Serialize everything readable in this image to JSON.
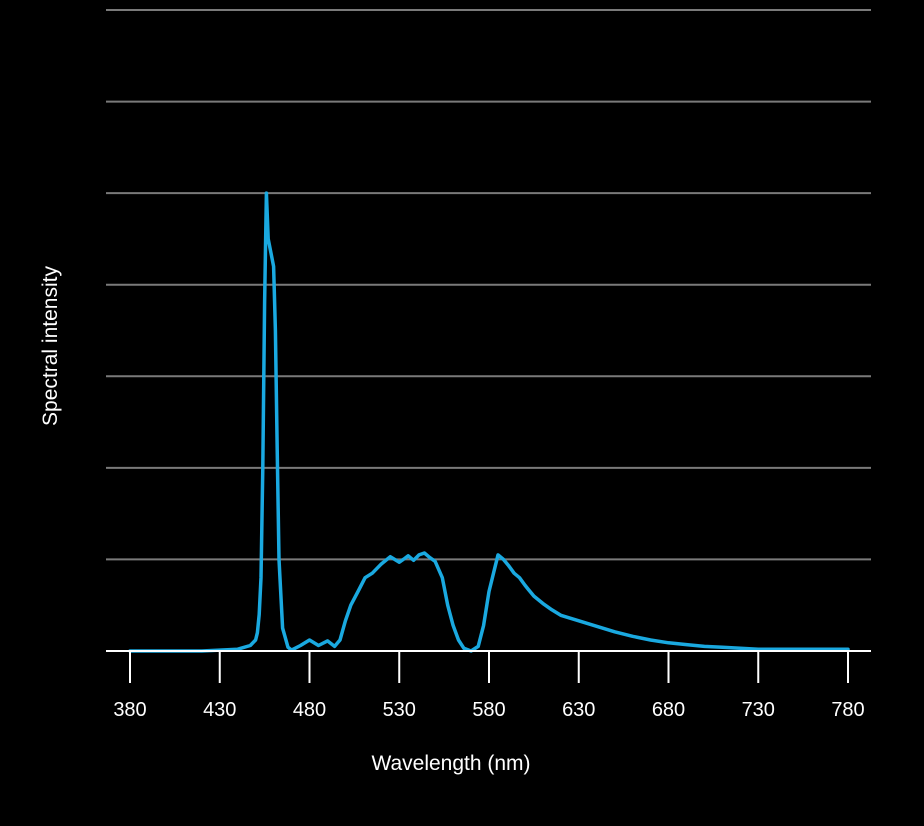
{
  "chart_data": {
    "type": "line",
    "title": "",
    "xlabel": "Wavelength (nm)",
    "ylabel": "Spectral intensity",
    "xlim": [
      380,
      780
    ],
    "ylim": [
      0,
      7
    ],
    "x_ticks": [
      380,
      430,
      480,
      530,
      580,
      630,
      680,
      730,
      780
    ],
    "x_tick_labels": [
      "380",
      "430",
      "480",
      "530",
      "580",
      "630",
      "680",
      "730",
      "780"
    ],
    "y_gridlines": [
      1,
      2,
      3,
      4,
      5,
      6,
      7
    ],
    "grid": "horizontal",
    "y_tick_labels_shown": false,
    "series": [
      {
        "color": "#1aa9e0",
        "x": [
          380,
          400,
          420,
          440,
          447,
          450,
          451,
          452,
          453,
          454,
          455,
          456,
          457,
          458,
          459,
          460,
          461,
          462,
          463,
          465,
          468,
          470,
          475,
          480,
          485,
          490,
          494,
          497,
          500,
          503,
          507,
          511,
          515,
          520,
          525,
          530,
          533,
          535,
          538,
          541,
          544,
          547,
          550,
          554,
          557,
          560,
          563,
          566,
          570,
          574,
          577,
          580,
          585,
          588,
          591,
          594,
          597,
          600,
          602,
          605,
          610,
          615,
          620,
          630,
          640,
          650,
          660,
          670,
          680,
          690,
          700,
          710,
          720,
          730,
          740,
          750,
          760,
          770,
          780
        ],
        "y": [
          0.0,
          0.0,
          0.0,
          0.02,
          0.06,
          0.12,
          0.2,
          0.4,
          0.8,
          2.0,
          3.8,
          5.0,
          4.5,
          4.4,
          4.3,
          4.2,
          3.5,
          2.2,
          1.0,
          0.25,
          0.04,
          0.01,
          0.06,
          0.12,
          0.06,
          0.11,
          0.05,
          0.12,
          0.33,
          0.5,
          0.65,
          0.8,
          0.85,
          0.95,
          1.03,
          0.97,
          1.01,
          1.04,
          0.99,
          1.05,
          1.07,
          1.02,
          0.98,
          0.8,
          0.5,
          0.28,
          0.12,
          0.03,
          0.0,
          0.05,
          0.28,
          0.65,
          1.05,
          1.0,
          0.93,
          0.85,
          0.8,
          0.72,
          0.67,
          0.6,
          0.52,
          0.45,
          0.39,
          0.33,
          0.27,
          0.21,
          0.16,
          0.12,
          0.09,
          0.07,
          0.05,
          0.04,
          0.03,
          0.02,
          0.02,
          0.02,
          0.02,
          0.02,
          0.02
        ]
      }
    ]
  }
}
